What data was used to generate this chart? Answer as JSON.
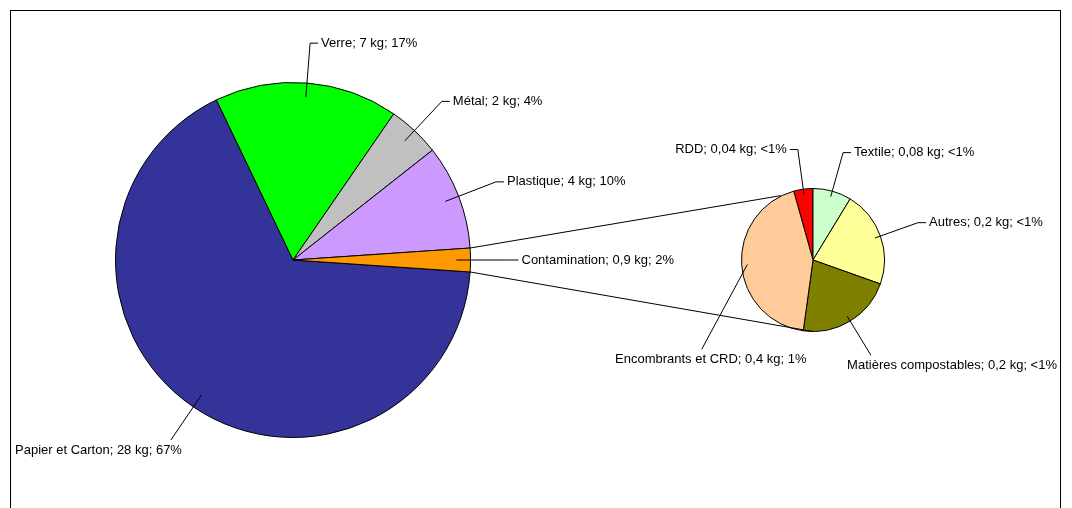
{
  "chart_data": [
    {
      "type": "pie",
      "categories": [
        "Papier et Carton",
        "Verre",
        "Métal",
        "Plastique",
        "Contamination"
      ],
      "values": [
        28,
        7,
        2,
        4,
        0.9
      ],
      "colors": [
        "#333399",
        "#00ff00",
        "#c0c0c0",
        "#cc99ff",
        "#ff9900"
      ],
      "value_labels": [
        "28 kg; 67%",
        "7 kg; 17%",
        "2 kg; 4%",
        "4 kg; 10%",
        "0,9 kg; 2%"
      ]
    },
    {
      "type": "pie",
      "categories": [
        "RDD",
        "Textile",
        "Autres",
        "Matières compostables",
        "Encombrants et CRD"
      ],
      "values": [
        0.04,
        0.08,
        0.2,
        0.2,
        0.4
      ],
      "colors": [
        "#ff0000",
        "#ccffcc",
        "#ffff99",
        "#808000",
        "#ffcc99"
      ],
      "value_labels": [
        "0,04 kg; <1%",
        "0,08 kg; <1%",
        "0,2 kg; <1%",
        "0,2 kg; <1%",
        "0,4 kg; 1%"
      ]
    }
  ]
}
